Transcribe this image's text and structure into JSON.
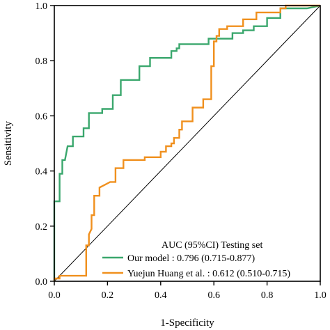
{
  "chart_data": {
    "type": "line",
    "xlabel": "1-Specificity",
    "ylabel": "Sensitivity",
    "xlim": [
      0,
      1
    ],
    "ylim": [
      0,
      1
    ],
    "xticks": [
      "0.0",
      "0.2",
      "0.4",
      "0.6",
      "0.8",
      "1.0"
    ],
    "yticks": [
      "0.0",
      "0.2",
      "0.4",
      "0.6",
      "0.8",
      "1.0"
    ],
    "grid": false,
    "legend_position": "bottom-right",
    "legend_title": "AUC (95%CI) Testing set",
    "diagonal_reference": true,
    "series": [
      {
        "name": "Our model : 0.796 (0.715-0.877)",
        "color": "#3aa76d",
        "points": [
          [
            0.0,
            0.0
          ],
          [
            0.0,
            0.29
          ],
          [
            0.02,
            0.29
          ],
          [
            0.02,
            0.39
          ],
          [
            0.03,
            0.39
          ],
          [
            0.03,
            0.44
          ],
          [
            0.04,
            0.44
          ],
          [
            0.05,
            0.49
          ],
          [
            0.07,
            0.49
          ],
          [
            0.07,
            0.525
          ],
          [
            0.11,
            0.525
          ],
          [
            0.11,
            0.555
          ],
          [
            0.13,
            0.555
          ],
          [
            0.13,
            0.61
          ],
          [
            0.18,
            0.61
          ],
          [
            0.18,
            0.625
          ],
          [
            0.22,
            0.625
          ],
          [
            0.22,
            0.675
          ],
          [
            0.25,
            0.675
          ],
          [
            0.25,
            0.73
          ],
          [
            0.32,
            0.73
          ],
          [
            0.32,
            0.78
          ],
          [
            0.36,
            0.78
          ],
          [
            0.36,
            0.81
          ],
          [
            0.44,
            0.81
          ],
          [
            0.44,
            0.835
          ],
          [
            0.46,
            0.835
          ],
          [
            0.46,
            0.845
          ],
          [
            0.47,
            0.845
          ],
          [
            0.47,
            0.86
          ],
          [
            0.58,
            0.86
          ],
          [
            0.58,
            0.88
          ],
          [
            0.67,
            0.88
          ],
          [
            0.67,
            0.9
          ],
          [
            0.71,
            0.9
          ],
          [
            0.71,
            0.91
          ],
          [
            0.75,
            0.91
          ],
          [
            0.75,
            0.925
          ],
          [
            0.8,
            0.925
          ],
          [
            0.8,
            0.955
          ],
          [
            0.85,
            0.955
          ],
          [
            0.85,
            0.99
          ],
          [
            0.95,
            0.99
          ],
          [
            1.0,
            1.0
          ]
        ]
      },
      {
        "name": "Yuejun Huang et al. : 0.612 (0.510-0.715)",
        "color": "#f0901e",
        "points": [
          [
            0.0,
            0.0
          ],
          [
            0.0,
            0.01
          ],
          [
            0.02,
            0.01
          ],
          [
            0.02,
            0.02
          ],
          [
            0.12,
            0.02
          ],
          [
            0.12,
            0.13
          ],
          [
            0.13,
            0.13
          ],
          [
            0.13,
            0.17
          ],
          [
            0.14,
            0.19
          ],
          [
            0.14,
            0.24
          ],
          [
            0.15,
            0.24
          ],
          [
            0.15,
            0.31
          ],
          [
            0.17,
            0.31
          ],
          [
            0.17,
            0.34
          ],
          [
            0.19,
            0.35
          ],
          [
            0.21,
            0.36
          ],
          [
            0.23,
            0.36
          ],
          [
            0.23,
            0.41
          ],
          [
            0.26,
            0.41
          ],
          [
            0.26,
            0.44
          ],
          [
            0.34,
            0.44
          ],
          [
            0.34,
            0.45
          ],
          [
            0.4,
            0.45
          ],
          [
            0.4,
            0.47
          ],
          [
            0.42,
            0.47
          ],
          [
            0.42,
            0.49
          ],
          [
            0.44,
            0.49
          ],
          [
            0.44,
            0.5
          ],
          [
            0.45,
            0.5
          ],
          [
            0.45,
            0.52
          ],
          [
            0.47,
            0.52
          ],
          [
            0.47,
            0.55
          ],
          [
            0.48,
            0.55
          ],
          [
            0.48,
            0.58
          ],
          [
            0.52,
            0.58
          ],
          [
            0.52,
            0.63
          ],
          [
            0.56,
            0.63
          ],
          [
            0.56,
            0.66
          ],
          [
            0.59,
            0.66
          ],
          [
            0.59,
            0.78
          ],
          [
            0.6,
            0.78
          ],
          [
            0.6,
            0.87
          ],
          [
            0.61,
            0.87
          ],
          [
            0.61,
            0.89
          ],
          [
            0.62,
            0.89
          ],
          [
            0.62,
            0.915
          ],
          [
            0.65,
            0.915
          ],
          [
            0.65,
            0.925
          ],
          [
            0.71,
            0.925
          ],
          [
            0.71,
            0.95
          ],
          [
            0.76,
            0.95
          ],
          [
            0.76,
            0.975
          ],
          [
            0.85,
            0.975
          ],
          [
            0.85,
            0.99
          ],
          [
            0.87,
            0.99
          ],
          [
            0.87,
            1.0
          ],
          [
            1.0,
            1.0
          ]
        ]
      }
    ]
  }
}
